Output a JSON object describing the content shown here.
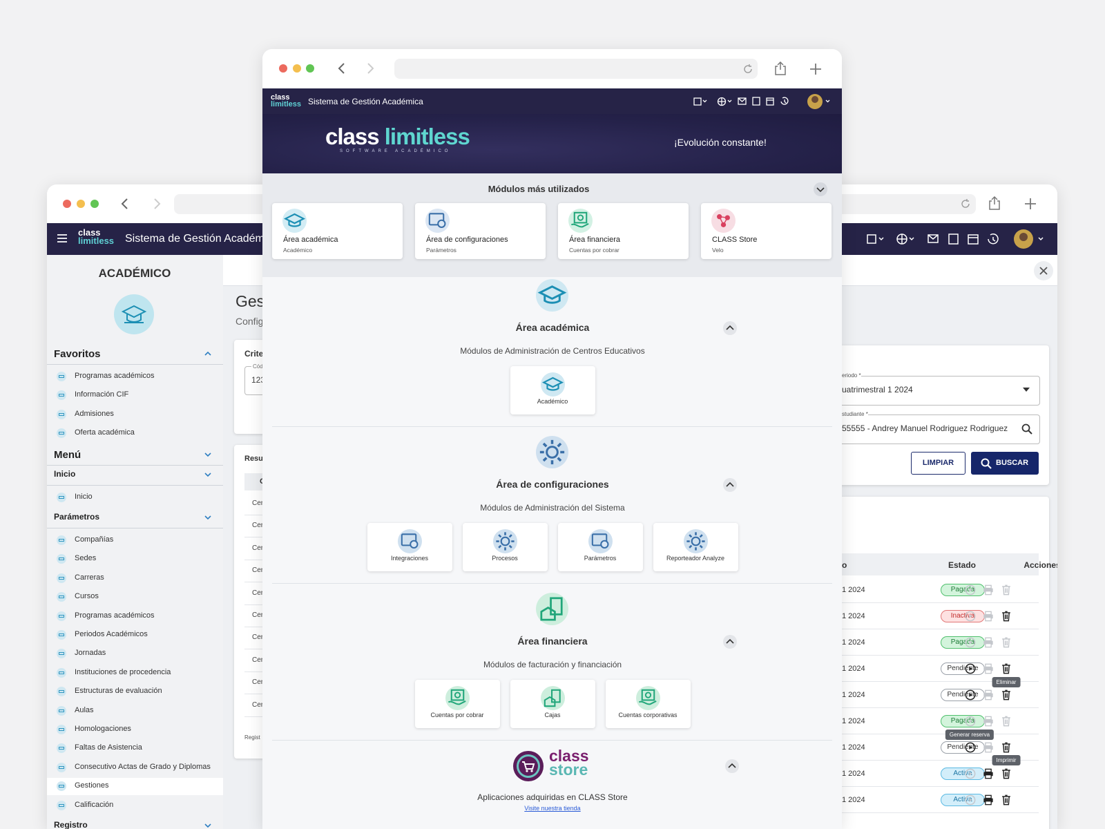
{
  "back_window": {
    "header_title": "Sistema de Gestión Académica",
    "logo": [
      "class",
      "limitless"
    ],
    "sidebar": {
      "title": "ACADÉMICO",
      "favorites": {
        "title": "Favoritos",
        "items": [
          "Programas académicos",
          "Información CIF",
          "Admisiones",
          "Oferta académica"
        ]
      },
      "menu_title": "Menú",
      "sections": [
        {
          "title": "Inicio",
          "items": [
            "Inicio"
          ]
        },
        {
          "title": "Parámetros",
          "items": [
            "Compañías",
            "Sedes",
            "Carreras",
            "Cursos",
            "Programas académicos",
            "Periodos Académicos",
            "Jornadas",
            "Instituciones de procedencia",
            "Estructuras de evaluación",
            "Aulas",
            "Homologaciones",
            "Faltas de Asistencia",
            "Consecutivo Actas de Grado y Diplomas",
            "Gestiones",
            "Calificación"
          ]
        },
        {
          "title": "Registro",
          "items": []
        }
      ]
    },
    "main": {
      "title": "Ges",
      "subtitle": "Config",
      "criteria_title": "Criter",
      "code_label": "Cód",
      "code_value": "123",
      "results_title": "Resu",
      "column": "C",
      "rows": [
        "Cer",
        "Cer",
        "Cer",
        "Cer",
        "Cer",
        "Cer",
        "Cer",
        "Cer",
        "Cer",
        "Cer"
      ],
      "footer": "Regist"
    },
    "form": {
      "period_label": "eriodo *",
      "period_value": "uatrimestral 1 2024",
      "student_label": "studiante *",
      "student_value": "55555 - Andrey Manuel Rodriguez Rodriguez",
      "clear_button": "LIMPIAR",
      "search_button": "BUSCAR"
    },
    "table": {
      "headers": [
        "o",
        "Estado",
        "Acciones"
      ],
      "rows": [
        {
          "period": "1 2024",
          "status": "Pagada"
        },
        {
          "period": "1 2024",
          "status": "Inactiva"
        },
        {
          "period": "1 2024",
          "status": "Pagada"
        },
        {
          "period": "1 2024",
          "status": "Pendiente"
        },
        {
          "period": "1 2024",
          "status": "Pendiente"
        },
        {
          "period": "1 2024",
          "status": "Pagada"
        },
        {
          "period": "1 2024",
          "status": "Pendiente"
        },
        {
          "period": "1 2024",
          "status": "Activa"
        },
        {
          "period": "1 2024",
          "status": "Activa"
        }
      ]
    },
    "tooltips": [
      "Eliminar",
      "Generar reserva",
      "Imprimir"
    ]
  },
  "front_window": {
    "header_title": "Sistema de Gestión Académica",
    "logo": [
      "class",
      "limitless"
    ],
    "banner": {
      "logo": [
        "class",
        "limitless"
      ],
      "tagline": "SOFTWARE ACADÉMICO",
      "slogan": "¡Evolución constante!"
    },
    "most_used": {
      "title": "Módulos más utilizados",
      "cards": [
        {
          "title": "Área académica",
          "subtitle": "Académico"
        },
        {
          "title": "Área de configuraciones",
          "subtitle": "Parámetros"
        },
        {
          "title": "Área financiera",
          "subtitle": "Cuentas por cobrar"
        },
        {
          "title": "CLASS Store",
          "subtitle": "Velo"
        }
      ]
    },
    "areas": [
      {
        "title": "Área académica",
        "description": "Módulos de Administración de Centros Educativos",
        "modules": [
          "Académico"
        ]
      },
      {
        "title": "Área de configuraciones",
        "description": "Módulos de Administración del Sistema",
        "modules": [
          "Integraciones",
          "Procesos",
          "Parámetros",
          "Reporteador Analyze"
        ]
      },
      {
        "title": "Área financiera",
        "description": "Módulos de facturación y financiación",
        "modules": [
          "Cuentas por cobrar",
          "Cajas",
          "Cuentas corporativas"
        ]
      }
    ],
    "store": {
      "logo": [
        "class",
        "store"
      ],
      "description": "Aplicaciones adquiridas en CLASS Store",
      "link": "Visite nuestra tienda"
    }
  }
}
